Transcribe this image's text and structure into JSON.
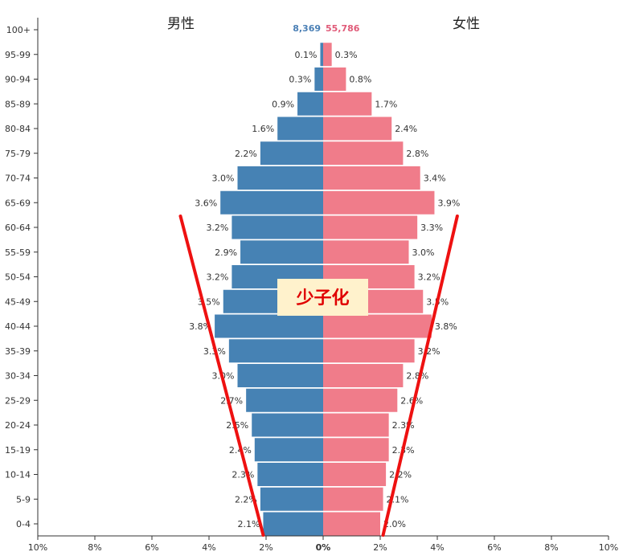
{
  "chart_data": {
    "type": "bar",
    "orientation": "horizontal-population-pyramid",
    "categories": [
      "100+",
      "95-99",
      "90-94",
      "85-89",
      "80-84",
      "75-79",
      "70-74",
      "65-69",
      "60-64",
      "55-59",
      "50-54",
      "45-49",
      "40-44",
      "35-39",
      "30-34",
      "25-29",
      "20-24",
      "15-19",
      "10-14",
      "5-9",
      "0-4"
    ],
    "series": [
      {
        "name": "男性",
        "color": "#4682b4",
        "values": [
          0.0,
          0.1,
          0.3,
          0.9,
          1.6,
          2.2,
          3.0,
          3.6,
          3.2,
          2.9,
          3.2,
          3.5,
          3.8,
          3.3,
          3.0,
          2.7,
          2.5,
          2.4,
          2.3,
          2.2,
          2.1
        ],
        "labels": [
          "",
          "0.1%",
          "0.3%",
          "0.9%",
          "1.6%",
          "2.2%",
          "3.0%",
          "3.6%",
          "3.2%",
          "2.9%",
          "3.2%",
          "3.5%",
          "3.8%",
          "3.3%",
          "3.0%",
          "2.7%",
          "2.5%",
          "2.4%",
          "2.3%",
          "2.2%",
          "2.1%"
        ]
      },
      {
        "name": "女性",
        "color": "#f07c8a",
        "values": [
          0.0,
          0.3,
          0.8,
          1.7,
          2.4,
          2.8,
          3.4,
          3.9,
          3.3,
          3.0,
          3.2,
          3.5,
          3.8,
          3.2,
          2.8,
          2.6,
          2.3,
          2.3,
          2.2,
          2.1,
          2.0
        ],
        "labels": [
          "",
          "0.3%",
          "0.8%",
          "1.7%",
          "2.4%",
          "2.8%",
          "3.4%",
          "3.9%",
          "3.3%",
          "3.0%",
          "3.2%",
          "3.5%",
          "3.8%",
          "3.2%",
          "2.8%",
          "2.6%",
          "2.3%",
          "2.3%",
          "2.2%",
          "2.1%",
          "2.0%"
        ]
      }
    ],
    "totals": {
      "male": "8,369",
      "female": "55,786"
    },
    "x_ticks": [
      "10%",
      "8%",
      "6%",
      "4%",
      "2%",
      "0%",
      "2%",
      "4%",
      "6%",
      "8%",
      "10%"
    ],
    "xlim": [
      -10,
      10
    ],
    "annotation": {
      "text": "少子化",
      "color": "#e00000",
      "background": "#fff2cc"
    },
    "trend_lines": {
      "color": "#ee1111",
      "left": {
        "from": [
          -5.0,
          "60-64"
        ],
        "to": [
          -2.1,
          "0-4"
        ]
      },
      "right": {
        "from": [
          4.7,
          "60-64"
        ],
        "to": [
          2.1,
          "0-4"
        ]
      }
    },
    "grid": false
  }
}
